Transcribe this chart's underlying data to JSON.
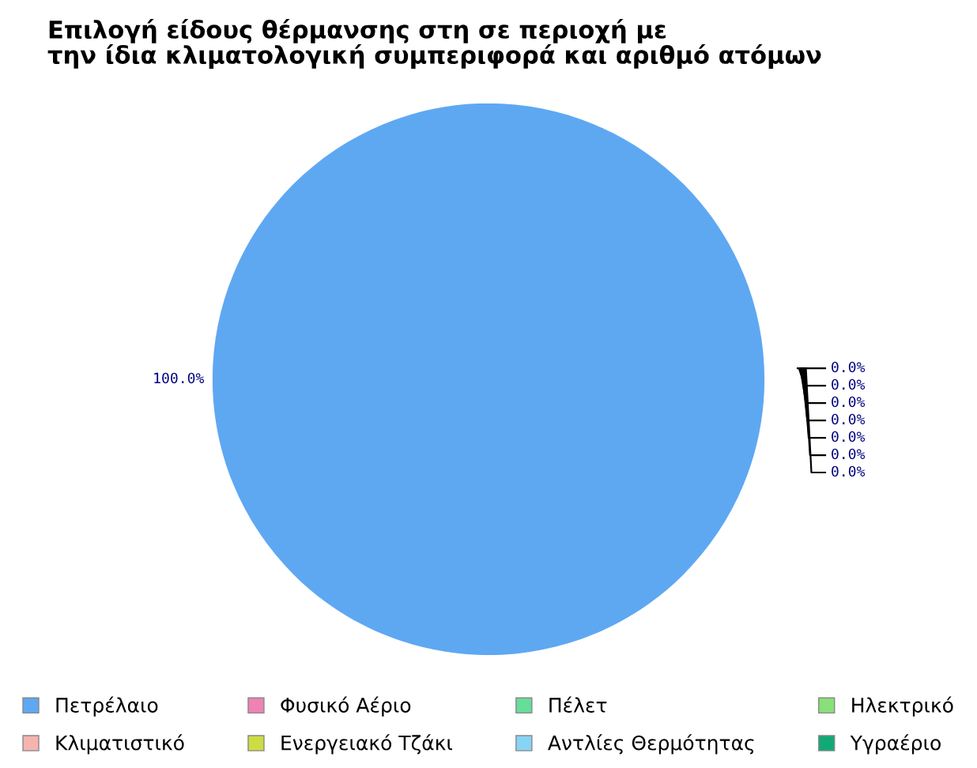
{
  "chart_data": {
    "type": "pie",
    "title": "Επιλογή είδους θέρμανσης στη σε περιοχή με\nτην ίδια κλιματολογική συμπεριφορά και αριθμό ατόμων",
    "categories": [
      "Πετρέλαιο",
      "Φυσικό Αέριο",
      "Πέλετ",
      "Ηλεκτρικό",
      "Κλιματιστικό",
      "Ενεργειακό Τζάκι",
      "Αντλίες Θερμότητας",
      "Υγραέριο"
    ],
    "values": [
      100,
      0,
      0,
      0,
      0,
      0,
      0,
      0
    ],
    "value_labels": [
      "100.0%",
      "0.0%",
      "0.0%",
      "0.0%",
      "0.0%",
      "0.0%",
      "0.0%",
      "0.0%"
    ],
    "colors": [
      "#5ea8f2",
      "#ee82b4",
      "#66dd99",
      "#88e078",
      "#f4b5ae",
      "#ccdd44",
      "#88d4f4",
      "#11aa77"
    ],
    "legend": "bottom"
  }
}
